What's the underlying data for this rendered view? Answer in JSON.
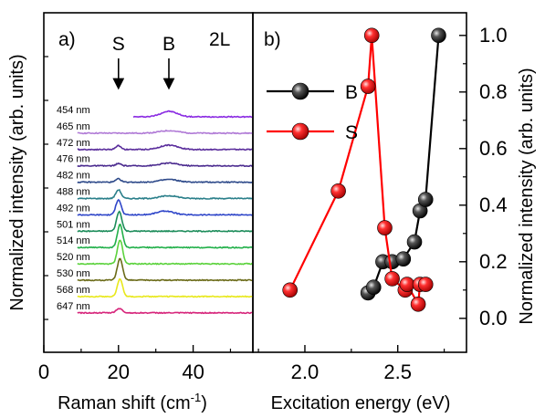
{
  "chart_data": [
    {
      "type": "line",
      "panel_label": "a)",
      "sample_label": "2L",
      "xlabel": "Raman shift (cm",
      "xlabel_sup": "-1",
      "xlabel_close": ")",
      "ylabel": "Normalized intensity (arb. units)",
      "xlim": [
        0,
        56
      ],
      "xticks": [
        "0",
        "20",
        "40"
      ],
      "arrows": [
        {
          "label": "S",
          "x": 20
        },
        {
          "label": "B",
          "x": 33.5
        }
      ],
      "grid": false,
      "series": [
        {
          "name": "454 nm",
          "color": "#8a2be2",
          "x_start": 24,
          "peaks": [
            {
              "x": 33.5,
              "h": 1.0,
              "w": 2.2
            }
          ]
        },
        {
          "name": "465 nm",
          "color": "#b07ad6",
          "x_start": 9,
          "peaks": [
            {
              "x": 33.5,
              "h": 0.45,
              "w": 2.5
            }
          ]
        },
        {
          "name": "472 nm",
          "color": "#5a2d9c",
          "x_start": 9,
          "peaks": [
            {
              "x": 20,
              "h": 0.7,
              "w": 0.7
            },
            {
              "x": 33.5,
              "h": 0.8,
              "w": 2.3
            }
          ]
        },
        {
          "name": "476 nm",
          "color": "#4b2b8f",
          "x_start": 9,
          "peaks": [
            {
              "x": 20,
              "h": 0.4,
              "w": 0.7
            },
            {
              "x": 33.5,
              "h": 0.5,
              "w": 2.3
            }
          ]
        },
        {
          "name": "482 nm",
          "color": "#2e4a8a",
          "x_start": 9,
          "peaks": [
            {
              "x": 20,
              "h": 0.6,
              "w": 0.7
            },
            {
              "x": 33.5,
              "h": 0.5,
              "w": 2.3
            }
          ]
        },
        {
          "name": "488 nm",
          "color": "#2a7f8a",
          "x_start": 9,
          "peaks": [
            {
              "x": 20,
              "h": 1.6,
              "w": 0.7
            },
            {
              "x": 33.5,
              "h": 0.5,
              "w": 2.3
            }
          ]
        },
        {
          "name": "492 nm",
          "color": "#2f46c9",
          "x_start": 9,
          "peaks": [
            {
              "x": 20,
              "h": 2.8,
              "w": 0.7
            },
            {
              "x": 32.5,
              "h": 0.7,
              "w": 2.2
            }
          ]
        },
        {
          "name": "501 nm",
          "color": "#1c8c5a",
          "x_start": 9,
          "peaks": [
            {
              "x": 20.2,
              "h": 3.6,
              "w": 0.7
            }
          ]
        },
        {
          "name": "514 nm",
          "color": "#22b04a",
          "x_start": 9,
          "peaks": [
            {
              "x": 20.4,
              "h": 4.2,
              "w": 0.7
            }
          ]
        },
        {
          "name": "520 nm",
          "color": "#5bd23c",
          "x_start": 9,
          "peaks": [
            {
              "x": 20.4,
              "h": 4.4,
              "w": 0.7
            }
          ]
        },
        {
          "name": "530 nm",
          "color": "#6b6b18",
          "x_start": 9,
          "peaks": [
            {
              "x": 20.4,
              "h": 4.0,
              "w": 0.7
            }
          ]
        },
        {
          "name": "568 nm",
          "color": "#e8e81c",
          "x_start": 9,
          "peaks": [
            {
              "x": 20.4,
              "h": 3.2,
              "w": 0.7
            }
          ]
        },
        {
          "name": "647 nm",
          "color": "#d6247a",
          "x_start": 9,
          "peaks": [
            {
              "x": 20.2,
              "h": 0.8,
              "w": 0.8
            }
          ]
        }
      ]
    },
    {
      "type": "line",
      "panel_label": "b)",
      "xlabel": "Excitation energy (eV)",
      "ylabel": "Normalized intensity (arb. units)",
      "xlim": [
        1.72,
        2.87
      ],
      "ylim": [
        -0.12,
        1.08
      ],
      "xticks": [
        "2.0",
        "2.5"
      ],
      "yticks": [
        "0.0",
        "0.2",
        "0.4",
        "0.6",
        "0.8",
        "1.0"
      ],
      "legend_position": "top-left",
      "grid": false,
      "series": [
        {
          "name": "B",
          "color": "#000000",
          "marker_color": "#222222",
          "x": [
            2.34,
            2.37,
            2.42,
            2.47,
            2.53,
            2.59,
            2.62,
            2.65,
            2.72
          ],
          "y": [
            0.09,
            0.11,
            0.2,
            0.2,
            0.21,
            0.27,
            0.38,
            0.42,
            1.0
          ]
        },
        {
          "name": "S",
          "color": "#ff0000",
          "marker_color": "#ff2222",
          "x": [
            1.92,
            2.18,
            2.34,
            2.36,
            2.43,
            2.47,
            2.54,
            2.55,
            2.61,
            2.62,
            2.65
          ],
          "y": [
            0.1,
            0.45,
            0.82,
            1.0,
            0.32,
            0.14,
            0.1,
            0.12,
            0.05,
            0.12,
            0.12
          ]
        }
      ]
    }
  ]
}
